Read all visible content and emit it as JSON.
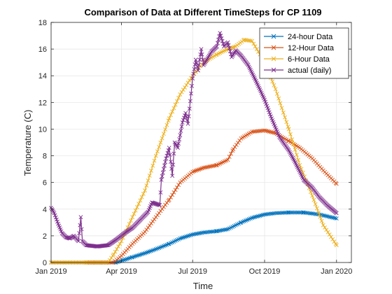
{
  "chart_data": {
    "type": "line",
    "title": "Comparison of Data at Different TimeSteps for CP 1109",
    "xlabel": "Time",
    "ylabel": "Temperature (C)",
    "xlim": [
      "2019-01-01",
      "2020-01-20"
    ],
    "ylim": [
      0,
      18
    ],
    "xticks": [
      {
        "value": "2019-01-01",
        "label": "Jan 2019"
      },
      {
        "value": "2019-04-01",
        "label": "Apr 2019"
      },
      {
        "value": "2019-07-01",
        "label": "Jul 2019"
      },
      {
        "value": "2019-10-01",
        "label": "Oct 2019"
      },
      {
        "value": "2020-01-01",
        "label": "Jan 2020"
      }
    ],
    "yticks": [
      0,
      2,
      4,
      6,
      8,
      10,
      12,
      14,
      16,
      18
    ],
    "grid": true,
    "legend_position": "top-right",
    "marker": "x",
    "series": [
      {
        "name": "24-hour Data",
        "color": "#0072BD",
        "points": [
          [
            "2019-01-01",
            0
          ],
          [
            "2019-03-25",
            0
          ],
          [
            "2019-04-15",
            0.4
          ],
          [
            "2019-05-01",
            0.7
          ],
          [
            "2019-05-15",
            1.0
          ],
          [
            "2019-06-01",
            1.4
          ],
          [
            "2019-06-15",
            1.8
          ],
          [
            "2019-07-01",
            2.1
          ],
          [
            "2019-07-15",
            2.25
          ],
          [
            "2019-08-01",
            2.35
          ],
          [
            "2019-08-15",
            2.5
          ],
          [
            "2019-09-01",
            3.0
          ],
          [
            "2019-09-15",
            3.35
          ],
          [
            "2019-10-01",
            3.6
          ],
          [
            "2019-10-15",
            3.7
          ],
          [
            "2019-11-01",
            3.75
          ],
          [
            "2019-11-20",
            3.75
          ],
          [
            "2019-12-10",
            3.6
          ],
          [
            "2020-01-01",
            3.3
          ]
        ]
      },
      {
        "name": "12-Hour Data",
        "color": "#D95319",
        "points": [
          [
            "2019-01-01",
            0
          ],
          [
            "2019-03-22",
            0
          ],
          [
            "2019-04-01",
            0.5
          ],
          [
            "2019-04-15",
            1.4
          ],
          [
            "2019-05-01",
            2.3
          ],
          [
            "2019-05-15",
            3.4
          ],
          [
            "2019-06-01",
            4.7
          ],
          [
            "2019-06-15",
            6.0
          ],
          [
            "2019-07-01",
            6.8
          ],
          [
            "2019-07-15",
            7.1
          ],
          [
            "2019-08-01",
            7.3
          ],
          [
            "2019-08-15",
            7.7
          ],
          [
            "2019-08-22",
            8.5
          ],
          [
            "2019-09-01",
            9.3
          ],
          [
            "2019-09-15",
            9.8
          ],
          [
            "2019-10-01",
            9.9
          ],
          [
            "2019-10-15",
            9.7
          ],
          [
            "2019-11-01",
            9.1
          ],
          [
            "2019-11-15",
            8.6
          ],
          [
            "2019-12-01",
            7.8
          ],
          [
            "2019-12-15",
            6.9
          ],
          [
            "2020-01-01",
            5.9
          ]
        ]
      },
      {
        "name": "6-Hour Data",
        "color": "#EDB120",
        "points": [
          [
            "2019-01-01",
            0
          ],
          [
            "2019-02-15",
            0
          ],
          [
            "2019-03-15",
            0
          ],
          [
            "2019-03-22",
            0.6
          ],
          [
            "2019-04-01",
            1.6
          ],
          [
            "2019-04-15",
            3.4
          ],
          [
            "2019-05-01",
            5.4
          ],
          [
            "2019-05-15",
            8.0
          ],
          [
            "2019-06-01",
            10.8
          ],
          [
            "2019-06-15",
            12.6
          ],
          [
            "2019-07-01",
            14.0
          ],
          [
            "2019-07-15",
            15.0
          ],
          [
            "2019-08-01",
            15.6
          ],
          [
            "2019-08-15",
            16.0
          ],
          [
            "2019-08-25",
            16.2
          ],
          [
            "2019-09-05",
            16.7
          ],
          [
            "2019-09-15",
            16.6
          ],
          [
            "2019-10-01",
            15.0
          ],
          [
            "2019-10-15",
            13.0
          ],
          [
            "2019-11-01",
            10.0
          ],
          [
            "2019-11-15",
            7.3
          ],
          [
            "2019-12-01",
            5.0
          ],
          [
            "2019-12-15",
            2.8
          ],
          [
            "2020-01-01",
            1.3
          ]
        ]
      },
      {
        "name": "actual (daily)",
        "color": "#7E2F8E",
        "points": [
          [
            "2019-01-01",
            4.1
          ],
          [
            "2019-01-05",
            3.7
          ],
          [
            "2019-01-10",
            2.9
          ],
          [
            "2019-01-15",
            2.2
          ],
          [
            "2019-01-20",
            1.9
          ],
          [
            "2019-01-25",
            1.8
          ],
          [
            "2019-01-30",
            2.0
          ],
          [
            "2019-02-05",
            1.6
          ],
          [
            "2019-02-08",
            3.4
          ],
          [
            "2019-02-10",
            1.6
          ],
          [
            "2019-02-15",
            1.3
          ],
          [
            "2019-03-01",
            1.2
          ],
          [
            "2019-03-15",
            1.3
          ],
          [
            "2019-03-25",
            1.7
          ],
          [
            "2019-04-05",
            2.2
          ],
          [
            "2019-04-15",
            2.6
          ],
          [
            "2019-04-25",
            3.2
          ],
          [
            "2019-05-05",
            3.8
          ],
          [
            "2019-05-10",
            4.5
          ],
          [
            "2019-05-20",
            4.3
          ],
          [
            "2019-05-22",
            6.2
          ],
          [
            "2019-05-28",
            7.8
          ],
          [
            "2019-06-01",
            8.6
          ],
          [
            "2019-06-05",
            6.5
          ],
          [
            "2019-06-08",
            9.0
          ],
          [
            "2019-06-12",
            8.6
          ],
          [
            "2019-06-18",
            10.5
          ],
          [
            "2019-06-22",
            11.2
          ],
          [
            "2019-06-25",
            10.4
          ],
          [
            "2019-07-01",
            13.8
          ],
          [
            "2019-07-05",
            15.2
          ],
          [
            "2019-07-08",
            14.4
          ],
          [
            "2019-07-12",
            16.0
          ],
          [
            "2019-07-15",
            14.8
          ],
          [
            "2019-07-20",
            15.3
          ],
          [
            "2019-07-25",
            15.8
          ],
          [
            "2019-08-01",
            16.2
          ],
          [
            "2019-08-05",
            17.2
          ],
          [
            "2019-08-10",
            16.2
          ],
          [
            "2019-08-15",
            16.5
          ],
          [
            "2019-08-20",
            15.4
          ],
          [
            "2019-08-25",
            15.9
          ],
          [
            "2019-09-01",
            15.5
          ],
          [
            "2019-09-10",
            14.8
          ],
          [
            "2019-09-20",
            13.6
          ],
          [
            "2019-10-01",
            12.2
          ],
          [
            "2019-10-10",
            10.8
          ],
          [
            "2019-10-20",
            9.4
          ],
          [
            "2019-11-01",
            8.4
          ],
          [
            "2019-11-10",
            7.4
          ],
          [
            "2019-11-20",
            6.2
          ],
          [
            "2019-12-01",
            5.6
          ],
          [
            "2019-12-10",
            4.9
          ],
          [
            "2019-12-20",
            4.3
          ],
          [
            "2020-01-01",
            3.7
          ]
        ]
      }
    ]
  }
}
